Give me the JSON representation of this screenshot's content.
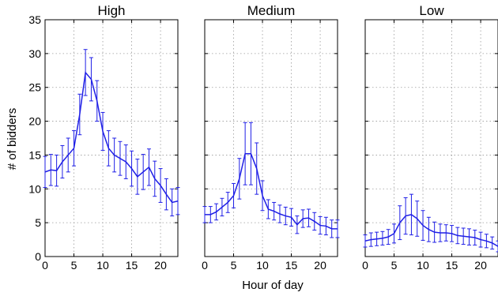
{
  "chart_data": {
    "type": "line",
    "xlabel": "Hour of day",
    "ylabel": "# of bidders",
    "ylim": [
      0,
      35
    ],
    "xlim": [
      0,
      23
    ],
    "yticks": [
      0,
      5,
      10,
      15,
      20,
      25,
      30,
      35
    ],
    "xticks": [
      0,
      5,
      10,
      15,
      20
    ],
    "grid": true,
    "line_color": "#1f1fe6",
    "x": [
      0,
      1,
      2,
      3,
      4,
      5,
      6,
      7,
      8,
      9,
      10,
      11,
      12,
      13,
      14,
      15,
      16,
      17,
      18,
      19,
      20,
      21,
      22,
      23
    ],
    "panels": [
      {
        "title": "High",
        "values": [
          12.5,
          12.8,
          12.7,
          14.0,
          15.0,
          16.0,
          21.0,
          27.2,
          26.2,
          23.0,
          18.5,
          16.0,
          15.0,
          14.5,
          14.0,
          13.0,
          11.8,
          12.5,
          13.2,
          11.5,
          10.5,
          9.2,
          8.0,
          8.2
        ],
        "errors": [
          2.3,
          2.3,
          2.3,
          2.4,
          2.5,
          2.6,
          3.0,
          3.4,
          3.2,
          3.0,
          2.8,
          2.6,
          2.5,
          2.5,
          2.5,
          2.6,
          2.6,
          2.6,
          2.7,
          2.6,
          2.5,
          2.3,
          2.0,
          2.0
        ]
      },
      {
        "title": "Medium",
        "values": [
          6.2,
          6.2,
          6.6,
          7.3,
          8.0,
          9.0,
          11.5,
          15.2,
          15.2,
          13.0,
          9.0,
          7.0,
          6.7,
          6.3,
          6.0,
          5.8,
          4.7,
          5.6,
          5.7,
          5.2,
          4.6,
          4.5,
          4.1,
          4.1
        ],
        "errors": [
          1.2,
          1.2,
          1.2,
          1.3,
          1.5,
          1.8,
          3.0,
          4.6,
          4.6,
          3.8,
          2.2,
          1.4,
          1.3,
          1.3,
          1.3,
          1.3,
          1.3,
          1.3,
          1.3,
          1.3,
          1.3,
          1.3,
          1.3,
          1.3
        ]
      },
      {
        "title": "Low",
        "values": [
          2.3,
          2.5,
          2.6,
          2.7,
          2.9,
          3.4,
          5.0,
          6.0,
          6.2,
          5.6,
          4.6,
          4.0,
          3.6,
          3.5,
          3.5,
          3.4,
          3.1,
          3.0,
          2.9,
          2.8,
          2.5,
          2.3,
          2.0,
          1.5
        ],
        "errors": [
          0.9,
          1.0,
          1.0,
          1.0,
          1.1,
          1.4,
          2.5,
          2.7,
          3.0,
          2.6,
          2.2,
          1.8,
          1.5,
          1.3,
          1.2,
          1.2,
          1.2,
          1.2,
          1.2,
          1.1,
          1.1,
          1.0,
          0.9,
          0.8
        ]
      }
    ]
  }
}
